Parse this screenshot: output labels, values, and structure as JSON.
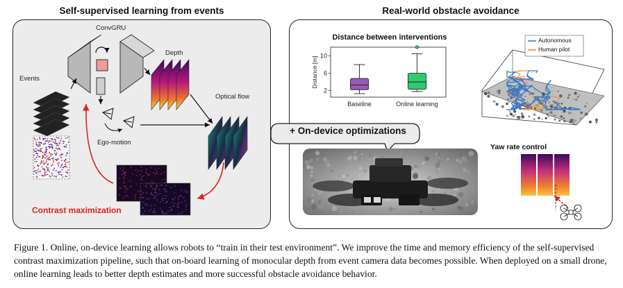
{
  "left_panel": {
    "title": "Self-supervised learning from events",
    "labels": {
      "convgru": "ConvGRU",
      "depth": "Depth",
      "events": "Events",
      "optical_flow": "Optical flow",
      "ego_motion": "Ego-motion",
      "contrast_maximization": "Contrast maximization"
    }
  },
  "right_panel": {
    "title": "Real-world obstacle avoidance",
    "callout": "+ On-device optimizations",
    "yaw_rate_label": "Yaw rate control",
    "trajectory_legend": [
      "Autonomous",
      "Human pilot"
    ]
  },
  "colors": {
    "contrast_red": "#e02020",
    "baseline_box": "#9b59b6",
    "online_box": "#2ecc71",
    "autonomous_line": "#3a78c2",
    "human_line": "#f08a30"
  },
  "chart_data": {
    "type": "box",
    "title": "Distance between interventions",
    "ylabel": "Distance [m]",
    "categories": [
      "Baseline",
      "Online learning"
    ],
    "yticks": [
      2,
      6,
      10
    ],
    "ylim": [
      0.5,
      12
    ],
    "boxes": [
      {
        "name": "Baseline",
        "whisker_low": 1.3,
        "q1": 2.2,
        "median": 3.3,
        "q3": 4.8,
        "whisker_high": 8.0,
        "outliers": []
      },
      {
        "name": "Online learning",
        "whisker_low": 1.8,
        "q1": 2.3,
        "median": 4.0,
        "q3": 6.0,
        "whisker_high": 10.5,
        "outliers": [
          12.0
        ]
      }
    ]
  },
  "caption": {
    "text": "Figure 1. Online, on-device learning allows robots to “train in their test environment”. We improve the time and memory efficiency of the self-supervised contrast maximization pipeline, such that on-board learning of monocular depth from event camera data becomes possible. When deployed on a small drone, online learning leads to better depth estimates and more successful obstacle avoidance behavior."
  }
}
